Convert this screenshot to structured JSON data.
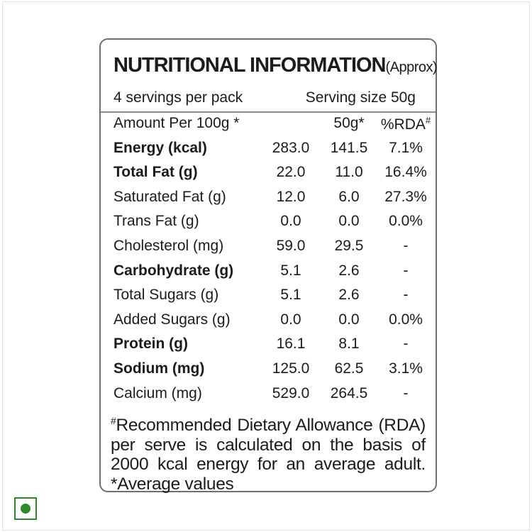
{
  "label": {
    "title": "NUTRITIONAL INFORMATION",
    "title_suffix": "(Approx)",
    "servings_per_pack": "4 servings per pack",
    "serving_size": "Serving size 50g",
    "header": {
      "col0": "Amount Per 100g *",
      "col2": "50g*",
      "col3": "%RDA#"
    },
    "rows": [
      {
        "name": "Energy (kcal)",
        "per100": "283.0",
        "per50": "141.5",
        "rda": "7.1%"
      },
      {
        "name": "Total Fat (g)",
        "per100": "22.0",
        "per50": "11.0",
        "rda": "16.4%"
      },
      {
        "name": "Saturated Fat (g)",
        "per100": "12.0",
        "per50": "6.0",
        "rda": "27.3%"
      },
      {
        "name": "Trans Fat (g)",
        "per100": "0.0",
        "per50": "0.0",
        "rda": "0.0%"
      },
      {
        "name": "Cholesterol (mg)",
        "per100": "59.0",
        "per50": "29.5",
        "rda": "-"
      },
      {
        "name": "Carbohydrate (g)",
        "per100": "5.1",
        "per50": "2.6",
        "rda": "-"
      },
      {
        "name": "Total Sugars (g)",
        "per100": "5.1",
        "per50": "2.6",
        "rda": "-"
      },
      {
        "name": "Added Sugars (g)",
        "per100": "0.0",
        "per50": "0.0",
        "rda": "0.0%"
      },
      {
        "name": "Protein (g)",
        "per100": "16.1",
        "per50": "8.1",
        "rda": "-"
      },
      {
        "name": "Sodium (mg)",
        "per100": "125.0",
        "per50": "62.5",
        "rda": "3.1%"
      },
      {
        "name": "Calcium (mg)",
        "per100": "529.0",
        "per50": "264.5",
        "rda": "-"
      }
    ],
    "footnote": {
      "line1": "#Recommended Dietary Allowance (RDA)",
      "line2": "per serve is calculated on the basis of",
      "line3": "2000 kcal energy for an average adult.",
      "line4": "*Average values"
    }
  },
  "veg_mark": {
    "icon": "veg-symbol-icon",
    "color": "#2d8a2d"
  }
}
